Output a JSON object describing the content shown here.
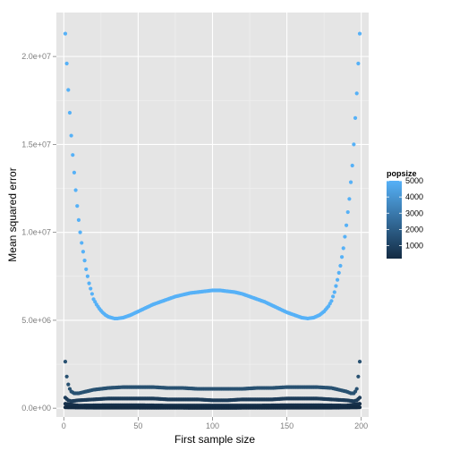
{
  "chart_data": {
    "type": "scatter",
    "title": "",
    "xlabel": "First sample size",
    "ylabel": "Mean squared error",
    "xlim": [
      -5,
      205
    ],
    "ylim": [
      -500000,
      22500000
    ],
    "x_ticks": [
      0,
      50,
      100,
      150,
      200
    ],
    "x_tick_labels": [
      "0",
      "50",
      "100",
      "150",
      "200"
    ],
    "y_ticks": [
      0,
      5000000,
      10000000,
      15000000,
      20000000
    ],
    "y_tick_labels": [
      "0.0e+00",
      "5.0e+06",
      "1.0e+07",
      "1.5e+07",
      "2.0e+07"
    ],
    "grid": true,
    "background": "#e5e5e5",
    "x_range": [
      1,
      199
    ],
    "legend": {
      "title": "popsize",
      "position": "right",
      "ticks": [
        1000,
        2000,
        3000,
        4000,
        5000
      ],
      "tick_labels": [
        "1000",
        "2000",
        "3000",
        "4000",
        "5000"
      ],
      "range": [
        200,
        5000
      ],
      "color_low": "#132b43",
      "color_high": "#56b1f7"
    },
    "series": [
      {
        "popsize": 5000,
        "color": "#56b1f7",
        "points": [
          [
            1,
            21300000
          ],
          [
            2,
            19600000
          ],
          [
            3,
            18100000
          ],
          [
            4,
            16800000
          ],
          [
            5,
            15500000
          ],
          [
            6,
            14400000
          ],
          [
            7,
            13400000
          ],
          [
            8,
            12400000
          ],
          [
            9,
            11500000
          ],
          [
            10,
            10700000
          ],
          [
            11,
            10000000
          ],
          [
            12,
            9400000
          ],
          [
            13,
            8900000
          ],
          [
            14,
            8400000
          ],
          [
            15,
            7900000
          ],
          [
            16,
            7500000
          ],
          [
            17,
            7100000
          ],
          [
            18,
            6800000
          ],
          [
            19,
            6500000
          ],
          [
            20,
            6200000
          ],
          [
            22,
            5900000
          ],
          [
            24,
            5650000
          ],
          [
            26,
            5450000
          ],
          [
            28,
            5300000
          ],
          [
            30,
            5200000
          ],
          [
            32,
            5150000
          ],
          [
            34,
            5100000
          ],
          [
            36,
            5100000
          ],
          [
            40,
            5150000
          ],
          [
            45,
            5300000
          ],
          [
            50,
            5500000
          ],
          [
            55,
            5700000
          ],
          [
            60,
            5900000
          ],
          [
            65,
            6050000
          ],
          [
            70,
            6200000
          ],
          [
            75,
            6350000
          ],
          [
            80,
            6450000
          ],
          [
            85,
            6550000
          ],
          [
            90,
            6600000
          ],
          [
            95,
            6650000
          ],
          [
            100,
            6700000
          ],
          [
            105,
            6700000
          ],
          [
            110,
            6650000
          ],
          [
            115,
            6600000
          ],
          [
            120,
            6500000
          ],
          [
            125,
            6350000
          ],
          [
            130,
            6200000
          ],
          [
            135,
            6050000
          ],
          [
            140,
            5850000
          ],
          [
            145,
            5650000
          ],
          [
            150,
            5450000
          ],
          [
            155,
            5300000
          ],
          [
            160,
            5150000
          ],
          [
            164,
            5100000
          ],
          [
            168,
            5150000
          ],
          [
            172,
            5300000
          ],
          [
            175,
            5500000
          ],
          [
            178,
            5800000
          ],
          [
            180,
            6100000
          ],
          [
            182,
            6600000
          ],
          [
            184,
            7300000
          ],
          [
            186,
            8100000
          ],
          [
            188,
            9100000
          ],
          [
            190,
            10400000
          ],
          [
            192,
            11900000
          ],
          [
            194,
            13800000
          ],
          [
            195,
            15000000
          ],
          [
            196,
            16500000
          ],
          [
            197,
            17900000
          ],
          [
            198,
            19600000
          ],
          [
            199,
            21300000
          ]
        ]
      },
      {
        "popsize": 2000,
        "color": "#285171",
        "points": [
          [
            1,
            2650000
          ],
          [
            2,
            1800000
          ],
          [
            3,
            1350000
          ],
          [
            4,
            1100000
          ],
          [
            5,
            950000
          ],
          [
            7,
            850000
          ],
          [
            10,
            850000
          ],
          [
            15,
            950000
          ],
          [
            20,
            1050000
          ],
          [
            30,
            1150000
          ],
          [
            40,
            1200000
          ],
          [
            50,
            1200000
          ],
          [
            60,
            1200000
          ],
          [
            70,
            1150000
          ],
          [
            80,
            1150000
          ],
          [
            90,
            1100000
          ],
          [
            100,
            1100000
          ],
          [
            110,
            1100000
          ],
          [
            120,
            1100000
          ],
          [
            130,
            1150000
          ],
          [
            140,
            1150000
          ],
          [
            150,
            1200000
          ],
          [
            160,
            1200000
          ],
          [
            170,
            1200000
          ],
          [
            180,
            1150000
          ],
          [
            185,
            1050000
          ],
          [
            190,
            950000
          ],
          [
            193,
            850000
          ],
          [
            195,
            850000
          ],
          [
            196,
            950000
          ],
          [
            197,
            1100000
          ],
          [
            198,
            1800000
          ],
          [
            199,
            2650000
          ]
        ]
      },
      {
        "popsize": 1000,
        "color": "#1d3c59",
        "points": [
          [
            1,
            600000
          ],
          [
            3,
            450000
          ],
          [
            5,
            400000
          ],
          [
            10,
            450000
          ],
          [
            20,
            500000
          ],
          [
            30,
            550000
          ],
          [
            40,
            550000
          ],
          [
            50,
            550000
          ],
          [
            60,
            550000
          ],
          [
            70,
            500000
          ],
          [
            80,
            500000
          ],
          [
            90,
            500000
          ],
          [
            100,
            450000
          ],
          [
            110,
            450000
          ],
          [
            120,
            500000
          ],
          [
            130,
            500000
          ],
          [
            140,
            500000
          ],
          [
            150,
            550000
          ],
          [
            160,
            550000
          ],
          [
            170,
            550000
          ],
          [
            180,
            500000
          ],
          [
            190,
            450000
          ],
          [
            195,
            400000
          ],
          [
            197,
            450000
          ],
          [
            199,
            600000
          ]
        ]
      },
      {
        "popsize": 500,
        "color": "#16304a",
        "points": [
          [
            1,
            250000
          ],
          [
            10,
            150000
          ],
          [
            30,
            170000
          ],
          [
            50,
            170000
          ],
          [
            70,
            150000
          ],
          [
            90,
            150000
          ],
          [
            110,
            150000
          ],
          [
            130,
            150000
          ],
          [
            150,
            170000
          ],
          [
            170,
            170000
          ],
          [
            190,
            150000
          ],
          [
            199,
            250000
          ]
        ]
      },
      {
        "popsize": 200,
        "color": "#132b43",
        "points": [
          [
            1,
            50000
          ],
          [
            20,
            30000
          ],
          [
            50,
            30000
          ],
          [
            100,
            20000
          ],
          [
            150,
            30000
          ],
          [
            180,
            30000
          ],
          [
            199,
            50000
          ]
        ]
      }
    ]
  }
}
